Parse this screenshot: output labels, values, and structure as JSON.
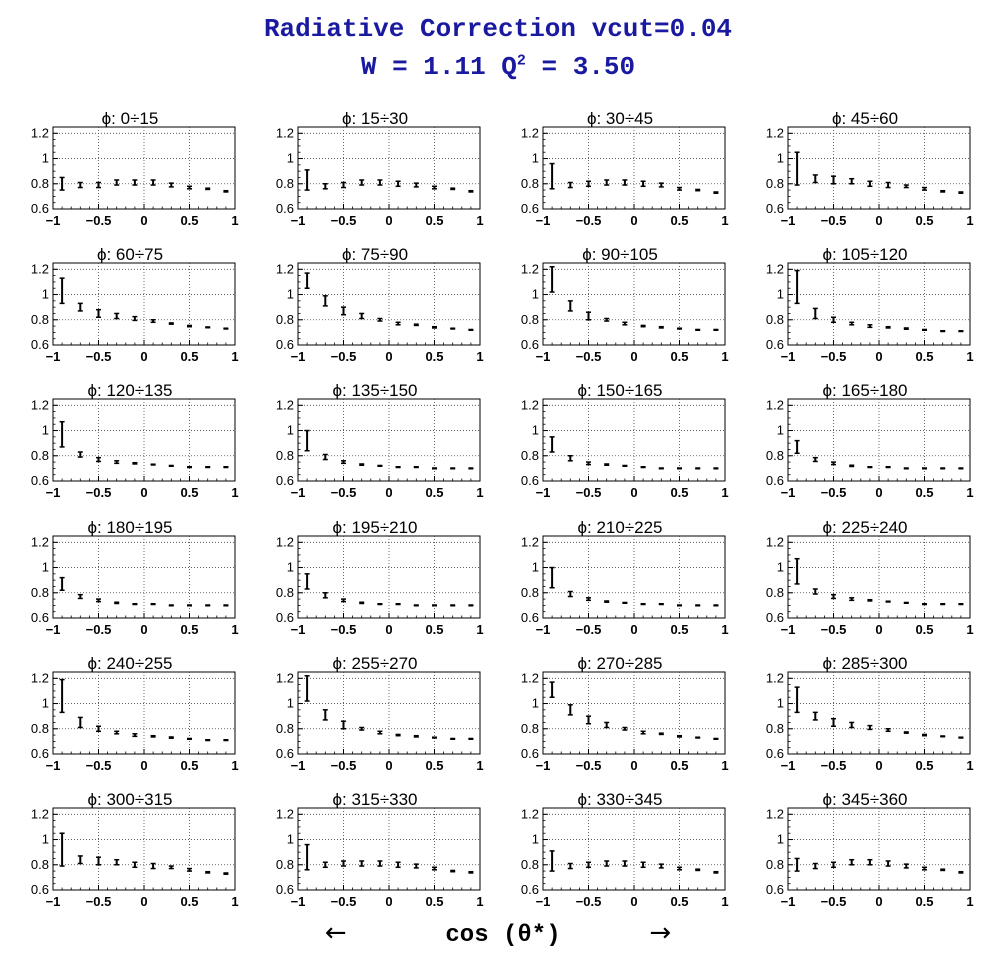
{
  "header": {
    "title_line1": "Radiative Correction  vcut=0.04",
    "title_line2_prefix": "W = 1.11  Q",
    "title_line2_sup": "2",
    "title_line2_suffix": " = 3.50"
  },
  "xaxis_caption": {
    "left_arrow": "←",
    "label": "cos (θ*)",
    "right_arrow": "→"
  },
  "chart_data": {
    "type": "scatter",
    "panel_layout": "6 rows x 4 columns",
    "xlim": [
      -1,
      1
    ],
    "ylim": [
      0.6,
      1.25
    ],
    "xticks": [
      -1,
      -0.5,
      0,
      0.5,
      1
    ],
    "xtick_labels": [
      "−1",
      "−0.5",
      "0",
      "0.5",
      "1"
    ],
    "yticks": [
      0.6,
      0.8,
      1,
      1.2
    ],
    "ytick_labels": [
      "0.6",
      "0.8",
      "1",
      "1.2"
    ],
    "grid": true,
    "x": [
      -0.9,
      -0.7,
      -0.5,
      -0.3,
      -0.1,
      0.1,
      0.3,
      0.5,
      0.7,
      0.9
    ],
    "panels": [
      {
        "label": "ϕ:  0÷15",
        "y": [
          0.8,
          0.79,
          0.79,
          0.81,
          0.81,
          0.81,
          0.79,
          0.77,
          0.76,
          0.74
        ],
        "err": [
          0.05,
          0.02,
          0.02,
          0.02,
          0.02,
          0.02,
          0.015,
          0.01,
          0.005,
          0.005
        ]
      },
      {
        "label": "ϕ:  15÷30",
        "y": [
          0.83,
          0.78,
          0.79,
          0.81,
          0.81,
          0.8,
          0.79,
          0.77,
          0.76,
          0.74
        ],
        "err": [
          0.08,
          0.02,
          0.02,
          0.02,
          0.02,
          0.02,
          0.015,
          0.01,
          0.005,
          0.005
        ]
      },
      {
        "label": "ϕ:  30÷45",
        "y": [
          0.86,
          0.79,
          0.8,
          0.81,
          0.81,
          0.8,
          0.79,
          0.76,
          0.75,
          0.73
        ],
        "err": [
          0.1,
          0.02,
          0.02,
          0.02,
          0.02,
          0.02,
          0.015,
          0.01,
          0.005,
          0.005
        ]
      },
      {
        "label": "ϕ:  45÷60",
        "y": [
          0.92,
          0.84,
          0.83,
          0.82,
          0.8,
          0.79,
          0.78,
          0.76,
          0.74,
          0.73
        ],
        "err": [
          0.13,
          0.03,
          0.03,
          0.02,
          0.02,
          0.02,
          0.01,
          0.01,
          0.005,
          0.005
        ]
      },
      {
        "label": "ϕ:  60÷75",
        "y": [
          1.03,
          0.9,
          0.85,
          0.83,
          0.81,
          0.79,
          0.77,
          0.75,
          0.74,
          0.73
        ],
        "err": [
          0.1,
          0.03,
          0.03,
          0.02,
          0.015,
          0.01,
          0.005,
          0.005,
          0.003,
          0.003
        ]
      },
      {
        "label": "ϕ:  75÷90",
        "y": [
          1.11,
          0.95,
          0.87,
          0.83,
          0.8,
          0.77,
          0.76,
          0.74,
          0.73,
          0.72
        ],
        "err": [
          0.06,
          0.04,
          0.03,
          0.02,
          0.01,
          0.01,
          0.005,
          0.005,
          0.003,
          0.003
        ]
      },
      {
        "label": "ϕ:  90÷105",
        "y": [
          1.12,
          0.91,
          0.83,
          0.8,
          0.77,
          0.75,
          0.74,
          0.73,
          0.72,
          0.72
        ],
        "err": [
          0.1,
          0.04,
          0.03,
          0.01,
          0.01,
          0.005,
          0.005,
          0.003,
          0.003,
          0.003
        ]
      },
      {
        "label": "ϕ: 105÷120",
        "y": [
          1.06,
          0.85,
          0.8,
          0.77,
          0.75,
          0.74,
          0.73,
          0.72,
          0.71,
          0.71
        ],
        "err": [
          0.13,
          0.04,
          0.02,
          0.01,
          0.01,
          0.005,
          0.005,
          0.003,
          0.003,
          0.003
        ]
      },
      {
        "label": "ϕ: 120÷135",
        "y": [
          0.97,
          0.81,
          0.77,
          0.75,
          0.74,
          0.73,
          0.72,
          0.71,
          0.71,
          0.71
        ],
        "err": [
          0.1,
          0.02,
          0.015,
          0.01,
          0.005,
          0.003,
          0.003,
          0.003,
          0.003,
          0.003
        ]
      },
      {
        "label": "ϕ: 135÷150",
        "y": [
          0.92,
          0.79,
          0.75,
          0.73,
          0.72,
          0.71,
          0.71,
          0.7,
          0.7,
          0.7
        ],
        "err": [
          0.08,
          0.02,
          0.01,
          0.005,
          0.003,
          0.003,
          0.003,
          0.003,
          0.003,
          0.003
        ]
      },
      {
        "label": "ϕ: 150÷165",
        "y": [
          0.89,
          0.78,
          0.74,
          0.73,
          0.72,
          0.71,
          0.7,
          0.7,
          0.7,
          0.7
        ],
        "err": [
          0.06,
          0.02,
          0.01,
          0.005,
          0.003,
          0.003,
          0.003,
          0.003,
          0.003,
          0.003
        ]
      },
      {
        "label": "ϕ: 165÷180",
        "y": [
          0.87,
          0.77,
          0.74,
          0.72,
          0.71,
          0.71,
          0.7,
          0.7,
          0.7,
          0.7
        ],
        "err": [
          0.05,
          0.015,
          0.01,
          0.005,
          0.003,
          0.003,
          0.003,
          0.003,
          0.003,
          0.003
        ]
      },
      {
        "label": "ϕ: 180÷195",
        "y": [
          0.87,
          0.77,
          0.74,
          0.72,
          0.71,
          0.71,
          0.7,
          0.7,
          0.7,
          0.7
        ],
        "err": [
          0.05,
          0.015,
          0.01,
          0.005,
          0.003,
          0.003,
          0.003,
          0.003,
          0.003,
          0.003
        ]
      },
      {
        "label": "ϕ: 195÷210",
        "y": [
          0.89,
          0.78,
          0.74,
          0.72,
          0.71,
          0.71,
          0.7,
          0.7,
          0.7,
          0.7
        ],
        "err": [
          0.06,
          0.02,
          0.01,
          0.005,
          0.003,
          0.003,
          0.003,
          0.003,
          0.003,
          0.003
        ]
      },
      {
        "label": "ϕ: 210÷225",
        "y": [
          0.92,
          0.79,
          0.75,
          0.73,
          0.72,
          0.71,
          0.71,
          0.7,
          0.7,
          0.7
        ],
        "err": [
          0.08,
          0.02,
          0.01,
          0.005,
          0.003,
          0.003,
          0.003,
          0.003,
          0.003,
          0.003
        ]
      },
      {
        "label": "ϕ: 225÷240",
        "y": [
          0.97,
          0.81,
          0.77,
          0.75,
          0.74,
          0.73,
          0.72,
          0.71,
          0.71,
          0.71
        ],
        "err": [
          0.1,
          0.02,
          0.015,
          0.01,
          0.005,
          0.003,
          0.003,
          0.003,
          0.003,
          0.003
        ]
      },
      {
        "label": "ϕ: 240÷255",
        "y": [
          1.06,
          0.85,
          0.8,
          0.77,
          0.75,
          0.74,
          0.73,
          0.72,
          0.71,
          0.71
        ],
        "err": [
          0.13,
          0.04,
          0.02,
          0.01,
          0.01,
          0.005,
          0.005,
          0.003,
          0.003,
          0.003
        ]
      },
      {
        "label": "ϕ: 255÷270",
        "y": [
          1.12,
          0.91,
          0.83,
          0.8,
          0.77,
          0.75,
          0.74,
          0.73,
          0.72,
          0.72
        ],
        "err": [
          0.1,
          0.04,
          0.03,
          0.01,
          0.01,
          0.005,
          0.005,
          0.003,
          0.003,
          0.003
        ]
      },
      {
        "label": "ϕ: 270÷285",
        "y": [
          1.11,
          0.95,
          0.87,
          0.83,
          0.8,
          0.77,
          0.76,
          0.74,
          0.73,
          0.72
        ],
        "err": [
          0.06,
          0.04,
          0.03,
          0.02,
          0.01,
          0.01,
          0.005,
          0.005,
          0.003,
          0.003
        ]
      },
      {
        "label": "ϕ: 285÷300",
        "y": [
          1.03,
          0.9,
          0.85,
          0.83,
          0.81,
          0.79,
          0.77,
          0.75,
          0.74,
          0.73
        ],
        "err": [
          0.1,
          0.03,
          0.03,
          0.02,
          0.015,
          0.01,
          0.005,
          0.005,
          0.003,
          0.003
        ]
      },
      {
        "label": "ϕ: 300÷315",
        "y": [
          0.92,
          0.84,
          0.83,
          0.82,
          0.8,
          0.79,
          0.78,
          0.76,
          0.74,
          0.73
        ],
        "err": [
          0.13,
          0.03,
          0.03,
          0.02,
          0.02,
          0.02,
          0.01,
          0.01,
          0.005,
          0.005
        ]
      },
      {
        "label": "ϕ: 315÷330",
        "y": [
          0.86,
          0.8,
          0.81,
          0.81,
          0.81,
          0.8,
          0.79,
          0.77,
          0.75,
          0.74
        ],
        "err": [
          0.1,
          0.02,
          0.02,
          0.02,
          0.02,
          0.02,
          0.015,
          0.01,
          0.005,
          0.005
        ]
      },
      {
        "label": "ϕ: 330÷345",
        "y": [
          0.83,
          0.79,
          0.8,
          0.81,
          0.81,
          0.8,
          0.79,
          0.77,
          0.76,
          0.74
        ],
        "err": [
          0.08,
          0.02,
          0.02,
          0.02,
          0.02,
          0.02,
          0.015,
          0.01,
          0.005,
          0.005
        ]
      },
      {
        "label": "ϕ: 345÷360",
        "y": [
          0.8,
          0.79,
          0.8,
          0.82,
          0.82,
          0.81,
          0.79,
          0.77,
          0.76,
          0.74
        ],
        "err": [
          0.05,
          0.02,
          0.02,
          0.02,
          0.02,
          0.02,
          0.015,
          0.01,
          0.005,
          0.005
        ]
      }
    ]
  }
}
